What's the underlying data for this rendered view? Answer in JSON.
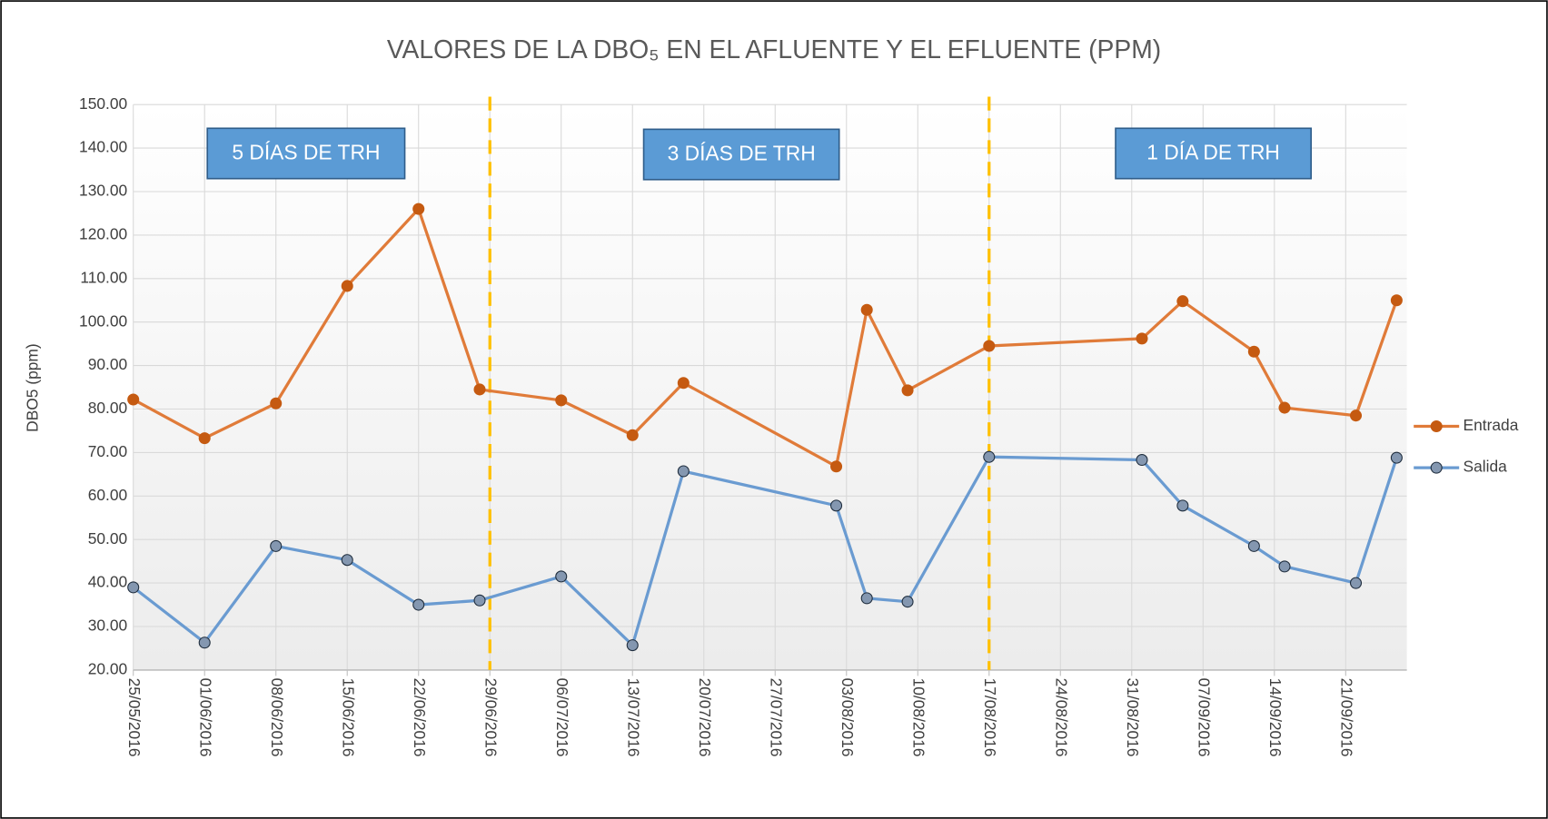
{
  "chart_data": {
    "type": "line",
    "title": "VALORES DE LA DBO₅ EN EL AFLUENTE Y EL EFLUENTE (PPM)",
    "y_label": "DBO5 (ppm)",
    "x": [
      "25/05/2016",
      "01/06/2016",
      "08/06/2016",
      "15/06/2016",
      "22/06/2016",
      "28/06/2016",
      "06/07/2016",
      "13/07/2016",
      "18/07/2016",
      "02/08/2016",
      "05/08/2016",
      "09/08/2016",
      "17/08/2016",
      "01/09/2016",
      "05/09/2016",
      "12/09/2016",
      "15/09/2016",
      "22/09/2016",
      "26/09/2016"
    ],
    "series": [
      {
        "name": "Entrada",
        "color": "#e07b39",
        "marker_color": "#c55a11",
        "values": [
          82.2,
          73.3,
          81.3,
          108.3,
          126.0,
          84.5,
          82.0,
          74.0,
          86.0,
          66.8,
          102.8,
          84.3,
          94.5,
          96.2,
          104.8,
          93.2,
          80.3,
          78.5,
          105.0
        ]
      },
      {
        "name": "Salida",
        "color": "#6a9bd1",
        "marker_color": "#8497b0",
        "values": [
          39.0,
          26.3,
          48.5,
          45.3,
          35.0,
          36.0,
          41.5,
          25.7,
          65.7,
          57.8,
          36.5,
          35.7,
          69.0,
          68.3,
          57.8,
          48.5,
          43.8,
          40.0,
          68.8
        ]
      }
    ],
    "xlim": [
      "25/05/2016",
      "27/09/2016"
    ],
    "xticks": [
      "25/05/2016",
      "01/06/2016",
      "08/06/2016",
      "15/06/2016",
      "22/06/2016",
      "29/06/2016",
      "06/07/2016",
      "13/07/2016",
      "20/07/2016",
      "27/07/2016",
      "03/08/2016",
      "10/08/2016",
      "17/08/2016",
      "24/08/2016",
      "31/08/2016",
      "07/09/2016",
      "14/09/2016",
      "21/09/2016"
    ],
    "ylim": [
      20,
      150
    ],
    "yticks": [
      {
        "value": 20,
        "label": "20.00"
      },
      {
        "value": 30,
        "label": "30.00"
      },
      {
        "value": 40,
        "label": "40.00"
      },
      {
        "value": 50,
        "label": "50.00"
      },
      {
        "value": 60,
        "label": "60.00"
      },
      {
        "value": 70,
        "label": "70.00"
      },
      {
        "value": 80,
        "label": "80.00"
      },
      {
        "value": 90,
        "label": "90.00"
      },
      {
        "value": 100,
        "label": "100.00"
      },
      {
        "value": 110,
        "label": "110.00"
      },
      {
        "value": 120,
        "label": "120.00"
      },
      {
        "value": 130,
        "label": "130.00"
      },
      {
        "value": 140,
        "label": "140.00"
      },
      {
        "value": 150,
        "label": "150.00"
      }
    ],
    "grid": true,
    "legend": "right",
    "vlines": [
      {
        "x": "29/06/2016",
        "color": "#ffc000"
      },
      {
        "x": "17/08/2016",
        "color": "#ffc000"
      }
    ],
    "annotations": [
      "5 DÍAS DE TRH",
      "3 DÍAS DE TRH",
      "1 DÍA DE TRH"
    ]
  }
}
